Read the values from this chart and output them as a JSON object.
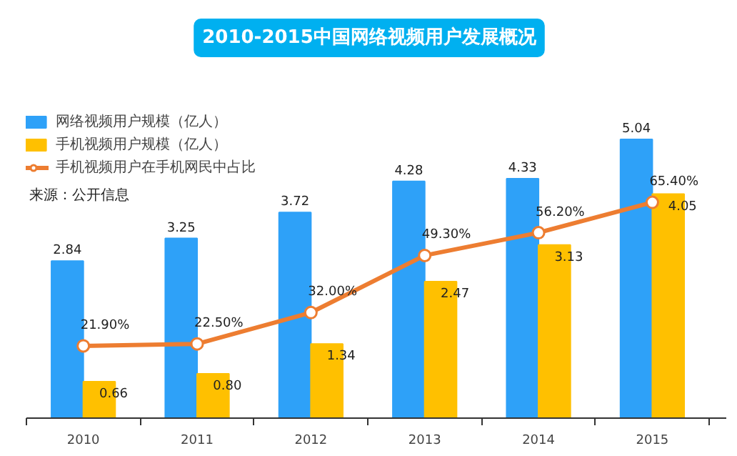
{
  "chart_data": {
    "type": "bar",
    "title": "2010-2015中国网络视频用户发展概况",
    "categories": [
      "2010",
      "2011",
      "2012",
      "2013",
      "2014",
      "2015"
    ],
    "series": [
      {
        "name": "网络视频用户规模（亿人）",
        "color": "#2ea1f8",
        "values": [
          2.84,
          3.25,
          3.72,
          4.28,
          4.33,
          5.04
        ],
        "value_labels": [
          "2.84",
          "3.25",
          "3.72",
          "4.28",
          "4.33",
          "5.04"
        ]
      },
      {
        "name": "手机视频用户规模（亿人）",
        "color": "#ffc000",
        "values": [
          0.66,
          0.8,
          1.34,
          2.47,
          3.13,
          4.05
        ],
        "value_labels": [
          "0.66",
          "0.80",
          "1.34",
          "2.47",
          "3.13",
          "4.05"
        ]
      },
      {
        "name": "手机视频用户在手机网民中占比",
        "type": "line",
        "axis": "y2",
        "color": "#ed7d31",
        "values": [
          21.9,
          22.5,
          32.0,
          49.3,
          56.2,
          65.4
        ],
        "value_labels": [
          "21.90%",
          "22.50%",
          "32.00%",
          "49.30%",
          "56.20%",
          "65.40%"
        ]
      }
    ],
    "tick_labels": "x",
    "marker": "circle",
    "legend": "top left",
    "annotations": [
      "来源：公开信息"
    ]
  }
}
